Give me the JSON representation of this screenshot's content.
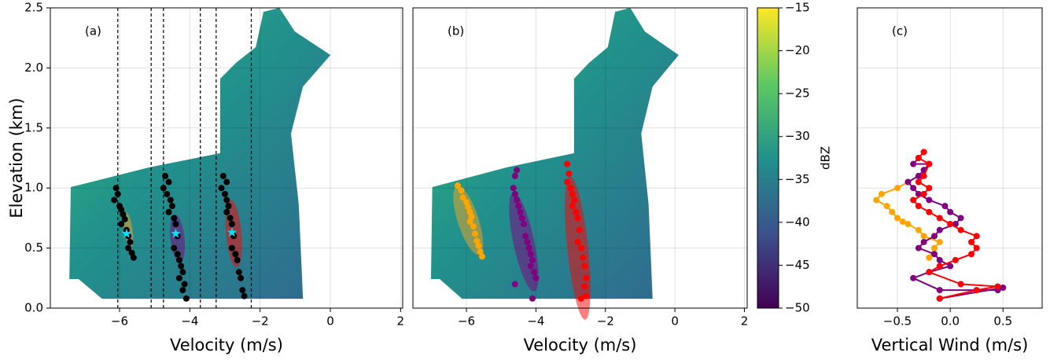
{
  "chart_data": [
    {
      "type": "scatter",
      "panel_label": "(a)",
      "x_label": "Velocity (m/s)",
      "y_label": "Elevation (km)",
      "xlim": [
        -7.97,
        2.06
      ],
      "ylim": [
        0,
        2.5
      ],
      "xticks": [
        {
          "value": -6,
          "label": "−6"
        },
        {
          "value": -4,
          "label": "−4"
        },
        {
          "value": -2,
          "label": "−2"
        },
        0,
        2
      ],
      "yticks": [
        {
          "value": 0,
          "label": "0.0"
        },
        {
          "value": 0.5,
          "label": "0.5"
        },
        {
          "value": 1,
          "label": "1.0"
        },
        {
          "value": 1.5,
          "label": "1.5"
        },
        {
          "value": 2,
          "label": "2.0"
        },
        {
          "value": 2.5,
          "label": "2.5"
        }
      ],
      "grid": true,
      "vlines": [
        -6.05,
        -5.1,
        -4.75,
        -3.7,
        -3.25,
        -2.25
      ],
      "vline_color": "#000000",
      "ellipses": [
        {
          "cx": -5.75,
          "cy": 0.65,
          "rx": 0.12,
          "ry": 0.15,
          "angle": -8,
          "color": "#f5a623"
        },
        {
          "cx": -4.35,
          "cy": 0.58,
          "rx": 0.2,
          "ry": 0.2,
          "angle": -6,
          "color": "#800080"
        },
        {
          "cx": -2.75,
          "cy": 0.62,
          "rx": 0.22,
          "ry": 0.28,
          "angle": -5,
          "color": "#ff0000"
        }
      ],
      "series": [
        {
          "color": "#000000",
          "x": [
            -6.1,
            -6.05,
            -6.15,
            -6.0,
            -5.95,
            -5.9,
            -5.85,
            -5.95,
            -5.8,
            -5.75,
            -5.7,
            -5.75,
            -5.65,
            -5.6
          ],
          "values": [
            1.0,
            0.95,
            0.9,
            0.85,
            0.82,
            0.78,
            0.74,
            0.7,
            0.65,
            0.6,
            0.55,
            0.5,
            0.46,
            0.42
          ]
        },
        {
          "color": "#000000",
          "x": [
            -4.7,
            -4.6,
            -4.75,
            -4.65,
            -4.55,
            -4.5,
            -4.6,
            -4.45,
            -4.4,
            -4.35,
            -4.45,
            -4.35,
            -4.3,
            -4.25,
            -4.2,
            -4.3,
            -4.15,
            -4.2,
            -4.1
          ],
          "values": [
            1.1,
            1.05,
            1.0,
            0.95,
            0.9,
            0.85,
            0.8,
            0.75,
            0.7,
            0.6,
            0.5,
            0.45,
            0.4,
            0.35,
            0.3,
            0.25,
            0.2,
            0.15,
            0.08
          ]
        },
        {
          "color": "#000000",
          "x": [
            -3.05,
            -2.95,
            -3.1,
            -3.0,
            -2.95,
            -2.9,
            -2.95,
            -2.85,
            -2.8,
            -2.75,
            -2.8,
            -2.7,
            -2.65,
            -2.6,
            -2.55,
            -2.5,
            -2.45
          ],
          "values": [
            1.1,
            1.05,
            1.0,
            0.95,
            0.9,
            0.85,
            0.8,
            0.75,
            0.7,
            0.6,
            0.5,
            0.45,
            0.4,
            0.3,
            0.25,
            0.15,
            0.1
          ]
        }
      ],
      "stars": {
        "color": "#00e5ff",
        "x": [
          -5.8,
          -4.4,
          -2.8
        ],
        "values": [
          0.62,
          0.62,
          0.63
        ]
      }
    },
    {
      "type": "scatter",
      "panel_label": "(b)",
      "x_label": "Velocity (m/s)",
      "xlim": [
        -7.54,
        2.08
      ],
      "ylim": [
        0,
        2.5
      ],
      "xticks": [
        {
          "value": -6,
          "label": "−6"
        },
        {
          "value": -4,
          "label": "−4"
        },
        {
          "value": -2,
          "label": "−2"
        },
        0,
        2
      ],
      "ygrid": [
        0.5,
        1,
        1.5,
        2
      ],
      "grid": true,
      "ellipses": [
        {
          "cx": -5.95,
          "cy": 0.73,
          "rx": 0.3,
          "ry": 0.3,
          "angle": -18,
          "color": "#f5a623"
        },
        {
          "cx": -4.35,
          "cy": 0.55,
          "rx": 0.3,
          "ry": 0.42,
          "angle": -12,
          "color": "#800080"
        },
        {
          "cx": -2.8,
          "cy": 0.5,
          "rx": 0.3,
          "ry": 0.6,
          "angle": -6,
          "color": "#ff0000"
        }
      ],
      "series": [
        {
          "color": "#ffa500",
          "x": [
            -6.25,
            -6.15,
            -6.1,
            -6.0,
            -5.95,
            -5.9,
            -5.85,
            -5.9,
            -5.8,
            -5.75,
            -5.7,
            -5.65,
            -5.6,
            -5.55
          ],
          "values": [
            1.02,
            0.98,
            0.92,
            0.88,
            0.84,
            0.8,
            0.76,
            0.72,
            0.68,
            0.62,
            0.56,
            0.52,
            0.47,
            0.43
          ]
        },
        {
          "color": "#800080",
          "x": [
            -4.55,
            -4.6,
            -4.65,
            -4.6,
            -4.55,
            -4.5,
            -4.45,
            -4.4,
            -4.35,
            -4.3,
            -4.25,
            -4.2,
            -4.15,
            -4.1,
            -4.15,
            -4.05,
            -4.0,
            -4.1,
            -4.6
          ],
          "values": [
            1.15,
            1.1,
            1.0,
            0.95,
            0.9,
            0.85,
            0.8,
            0.75,
            0.7,
            0.6,
            0.55,
            0.5,
            0.45,
            0.4,
            0.35,
            0.3,
            0.25,
            0.08,
            0.2
          ]
        },
        {
          "color": "#ff0000",
          "x": [
            -3.1,
            -3.05,
            -3.1,
            -3.0,
            -2.95,
            -2.9,
            -2.95,
            -2.85,
            -2.8,
            -2.75,
            -2.8,
            -2.7,
            -2.65,
            -2.6,
            -2.55,
            -2.6,
            -2.55,
            -2.7
          ],
          "values": [
            1.2,
            1.12,
            1.05,
            1.0,
            0.95,
            0.9,
            0.85,
            0.8,
            0.75,
            0.65,
            0.55,
            0.5,
            0.42,
            0.35,
            0.25,
            0.18,
            0.1,
            0.08
          ]
        }
      ],
      "colorbar": {
        "label": "dBZ",
        "lim": [
          -50,
          -15
        ],
        "ticks": [
          {
            "value": -15,
            "label": "−15"
          },
          {
            "value": -20,
            "label": "−20"
          },
          {
            "value": -25,
            "label": "−25"
          },
          {
            "value": -30,
            "label": "−30"
          },
          {
            "value": -35,
            "label": "−35"
          },
          {
            "value": -40,
            "label": "−40"
          },
          {
            "value": -45,
            "label": "−45"
          },
          {
            "value": -50,
            "label": "−50"
          }
        ]
      }
    },
    {
      "type": "line",
      "panel_label": "(c)",
      "x_label": "Vertical Wind (m/s)",
      "xlim": [
        -0.88,
        0.87
      ],
      "ylim": [
        0,
        2.5
      ],
      "xticks": [
        {
          "value": -0.5,
          "label": "−0.5"
        },
        {
          "value": 0,
          "label": "0.0"
        },
        {
          "value": 0.5,
          "label": "0.5"
        }
      ],
      "ygrid": [
        0.5,
        1,
        1.5,
        2
      ],
      "grid": true,
      "series": [
        {
          "color": "#ffa500",
          "x": [
            -0.2,
            -0.15,
            -0.1,
            -0.25,
            -0.3,
            -0.4,
            -0.45,
            -0.5,
            -0.55,
            -0.6,
            -0.7,
            -0.65,
            -0.5,
            -0.4
          ],
          "values": [
            0.42,
            0.5,
            0.55,
            0.6,
            0.65,
            0.7,
            0.72,
            0.75,
            0.8,
            0.85,
            0.9,
            0.95,
            1.0,
            1.05
          ]
        },
        {
          "color": "#800080",
          "x": [
            -0.1,
            0.5,
            0.45,
            -0.1,
            -0.35,
            -0.2,
            0.0,
            -0.1,
            -0.15,
            -0.3,
            -0.25,
            -0.15,
            -0.1,
            0.05,
            0.1,
            0.0,
            -0.05,
            -0.2,
            -0.3,
            -0.35,
            -0.4,
            -0.3,
            -0.25,
            -0.2,
            -0.35,
            -0.3
          ],
          "values": [
            0.08,
            0.17,
            0.15,
            0.15,
            0.25,
            0.3,
            0.35,
            0.4,
            0.45,
            0.5,
            0.55,
            0.6,
            0.65,
            0.7,
            0.75,
            0.8,
            0.85,
            0.9,
            0.95,
            1.0,
            1.05,
            1.1,
            1.15,
            1.2,
            1.2,
            1.25
          ]
        },
        {
          "color": "#ff0000",
          "x": [
            -0.1,
            0.25,
            0.45,
            0.1,
            -0.2,
            -0.1,
            0.05,
            0.2,
            0.25,
            0.2,
            0.25,
            0.1,
            0.0,
            -0.1,
            -0.2,
            -0.3,
            -0.35,
            -0.25,
            -0.2,
            -0.3,
            -0.25,
            -0.2,
            -0.3,
            -0.25
          ],
          "values": [
            0.08,
            0.15,
            0.18,
            0.2,
            0.3,
            0.35,
            0.4,
            0.45,
            0.5,
            0.55,
            0.6,
            0.65,
            0.7,
            0.75,
            0.8,
            0.85,
            0.9,
            0.95,
            1.0,
            1.05,
            1.1,
            1.2,
            1.25,
            1.3
          ]
        }
      ]
    }
  ]
}
